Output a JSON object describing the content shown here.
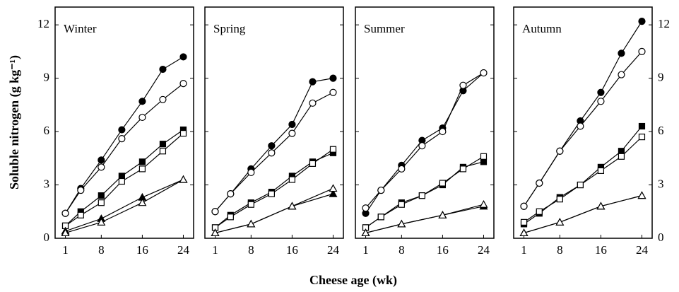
{
  "ylabel": "Soluble nitrogen (g kg⁻¹)",
  "xlabel": "Cheese age (wk)",
  "chart_data": [
    {
      "type": "line",
      "title": "Winter",
      "color": "#000000",
      "xlim": [
        -1,
        26
      ],
      "ylim": [
        0,
        13
      ],
      "xticks": [
        1,
        8,
        16,
        24
      ],
      "yticks": [
        0,
        3,
        6,
        9,
        12
      ],
      "tick_labels": "left",
      "series": [
        {
          "marker": "circle",
          "filled": true,
          "x": [
            1,
            4,
            8,
            12,
            16,
            20,
            24
          ],
          "values": [
            1.4,
            2.8,
            4.4,
            6.1,
            7.7,
            9.5,
            10.2
          ]
        },
        {
          "marker": "circle",
          "filled": false,
          "x": [
            1,
            4,
            8,
            12,
            16,
            20,
            24
          ],
          "values": [
            1.4,
            2.7,
            4.0,
            5.6,
            6.8,
            7.8,
            8.7
          ]
        },
        {
          "marker": "square",
          "filled": true,
          "x": [
            1,
            4,
            8,
            12,
            16,
            20,
            24
          ],
          "values": [
            0.7,
            1.5,
            2.4,
            3.5,
            4.3,
            5.3,
            6.1
          ]
        },
        {
          "marker": "square",
          "filled": false,
          "x": [
            1,
            4,
            8,
            12,
            16,
            20,
            24
          ],
          "values": [
            0.7,
            1.3,
            2.0,
            3.2,
            3.9,
            4.9,
            5.9
          ]
        },
        {
          "marker": "triangle",
          "filled": true,
          "x": [
            1,
            8,
            16,
            24
          ],
          "values": [
            0.4,
            1.1,
            2.3,
            3.3
          ]
        },
        {
          "marker": "triangle",
          "filled": false,
          "x": [
            1,
            8,
            16,
            24
          ],
          "values": [
            0.3,
            0.9,
            2.0,
            3.3
          ]
        }
      ]
    },
    {
      "type": "line",
      "title": "Spring",
      "color": "#000000",
      "xlim": [
        -1,
        26
      ],
      "ylim": [
        0,
        13
      ],
      "xticks": [
        1,
        8,
        16,
        24
      ],
      "yticks": [
        0,
        3,
        6,
        9,
        12
      ],
      "tick_labels": "none",
      "series": [
        {
          "marker": "circle",
          "filled": true,
          "x": [
            1,
            4,
            8,
            12,
            16,
            20,
            24
          ],
          "values": [
            1.5,
            2.5,
            3.9,
            5.2,
            6.4,
            8.8,
            9.0
          ]
        },
        {
          "marker": "circle",
          "filled": false,
          "x": [
            1,
            4,
            8,
            12,
            16,
            20,
            24
          ],
          "values": [
            1.5,
            2.5,
            3.7,
            4.8,
            5.9,
            7.6,
            8.2
          ]
        },
        {
          "marker": "square",
          "filled": true,
          "x": [
            1,
            4,
            8,
            12,
            16,
            20,
            24
          ],
          "values": [
            0.6,
            1.3,
            2.0,
            2.6,
            3.5,
            4.3,
            4.8
          ]
        },
        {
          "marker": "square",
          "filled": false,
          "x": [
            1,
            4,
            8,
            12,
            16,
            20,
            24
          ],
          "values": [
            0.6,
            1.2,
            1.9,
            2.5,
            3.3,
            4.2,
            5.0
          ]
        },
        {
          "marker": "triangle",
          "filled": true,
          "x": [
            1,
            8,
            16,
            24
          ],
          "values": [
            0.3,
            0.8,
            1.8,
            2.5
          ]
        },
        {
          "marker": "triangle",
          "filled": false,
          "x": [
            1,
            8,
            16,
            24
          ],
          "values": [
            0.3,
            0.8,
            1.8,
            2.8
          ]
        }
      ]
    },
    {
      "type": "line",
      "title": "Summer",
      "color": "#000000",
      "xlim": [
        -1,
        26
      ],
      "ylim": [
        0,
        13
      ],
      "xticks": [
        1,
        8,
        16,
        24
      ],
      "yticks": [
        0,
        3,
        6,
        9,
        12
      ],
      "tick_labels": "none",
      "series": [
        {
          "marker": "circle",
          "filled": true,
          "x": [
            1,
            4,
            8,
            12,
            16,
            20,
            24
          ],
          "values": [
            1.4,
            2.7,
            4.1,
            5.5,
            6.2,
            8.3,
            9.3
          ]
        },
        {
          "marker": "circle",
          "filled": false,
          "x": [
            1,
            4,
            8,
            12,
            16,
            20,
            24
          ],
          "values": [
            1.7,
            2.7,
            3.9,
            5.2,
            6.0,
            8.6,
            9.3
          ]
        },
        {
          "marker": "square",
          "filled": true,
          "x": [
            1,
            4,
            8,
            12,
            16,
            20,
            24
          ],
          "values": [
            0.6,
            1.2,
            2.0,
            2.4,
            3.0,
            4.0,
            4.3
          ]
        },
        {
          "marker": "square",
          "filled": false,
          "x": [
            1,
            4,
            8,
            12,
            16,
            20,
            24
          ],
          "values": [
            0.6,
            1.2,
            1.9,
            2.4,
            3.1,
            3.9,
            4.6
          ]
        },
        {
          "marker": "triangle",
          "filled": true,
          "x": [
            1,
            8,
            16,
            24
          ],
          "values": [
            0.3,
            0.8,
            1.3,
            1.8
          ]
        },
        {
          "marker": "triangle",
          "filled": false,
          "x": [
            1,
            8,
            16,
            24
          ],
          "values": [
            0.3,
            0.8,
            1.3,
            1.9
          ]
        }
      ]
    },
    {
      "type": "line",
      "title": "Autumn",
      "color": "#000000",
      "xlim": [
        -1,
        26
      ],
      "ylim": [
        0,
        13
      ],
      "xticks": [
        1,
        8,
        16,
        24
      ],
      "yticks": [
        0,
        3,
        6,
        9,
        12
      ],
      "tick_labels": "right",
      "series": [
        {
          "marker": "circle",
          "filled": true,
          "x": [
            1,
            4,
            8,
            12,
            16,
            20,
            24
          ],
          "values": [
            1.8,
            3.1,
            4.9,
            6.6,
            8.2,
            10.4,
            12.2
          ]
        },
        {
          "marker": "circle",
          "filled": false,
          "x": [
            1,
            4,
            8,
            12,
            16,
            20,
            24
          ],
          "values": [
            1.8,
            3.1,
            4.9,
            6.3,
            7.7,
            9.2,
            10.5
          ]
        },
        {
          "marker": "square",
          "filled": true,
          "x": [
            1,
            4,
            8,
            12,
            16,
            20,
            24
          ],
          "values": [
            0.8,
            1.4,
            2.3,
            3.0,
            4.0,
            4.9,
            6.3
          ]
        },
        {
          "marker": "square",
          "filled": false,
          "x": [
            1,
            4,
            8,
            12,
            16,
            20,
            24
          ],
          "values": [
            0.9,
            1.5,
            2.2,
            3.0,
            3.8,
            4.6,
            5.7
          ]
        },
        {
          "marker": "triangle",
          "filled": true,
          "x": [
            1,
            8,
            16,
            24
          ],
          "values": [
            0.3,
            0.9,
            1.8,
            2.4
          ]
        },
        {
          "marker": "triangle",
          "filled": false,
          "x": [
            1,
            8,
            16,
            24
          ],
          "values": [
            0.3,
            0.9,
            1.8,
            2.4
          ]
        }
      ]
    }
  ]
}
